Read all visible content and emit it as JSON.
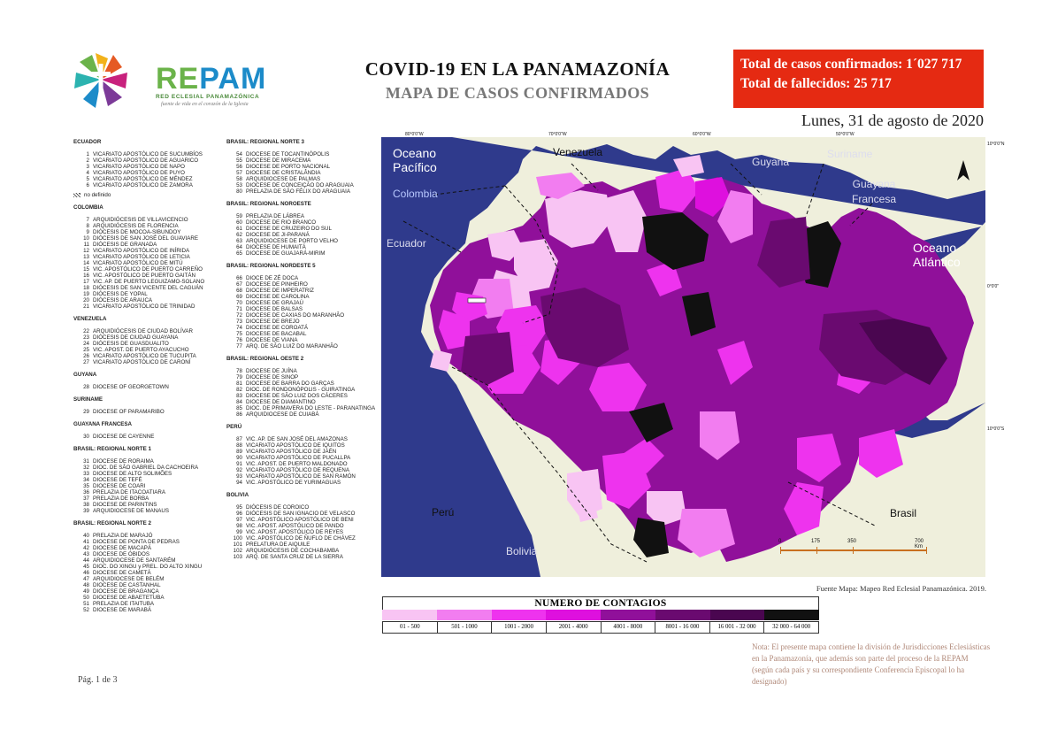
{
  "header": {
    "logo_word": "REPAM",
    "logo_subtitle": "RED ECLESIAL PANAMAZÓNICA",
    "logo_tagline": "fuente de vida en el corazón de la Iglesia",
    "title": "COVID-19 EN LA PANAMAZONÍA",
    "subtitle": "MAPA DE CASOS CONFIRMADOS",
    "total_cases": "Total de casos confirmados: 1´027 717",
    "total_deaths": "Total de fallecidos: 25 717",
    "date": "Lunes, 31 de agosto de 2020"
  },
  "colors": {
    "brand_green": "#6bb34a",
    "brand_blue": "#1c8bc9",
    "totals_bg": "#e52a12",
    "ocean": "#2f3a8c",
    "land_outside": "#efefdc",
    "scale": [
      "#f8c4f3",
      "#f27df0",
      "#ee33ee",
      "#de10de",
      "#90109a",
      "#6a0a70",
      "#4a0650",
      "#111111"
    ]
  },
  "legend_left": [
    {
      "header": "ECUADOR",
      "items": [
        {
          "n": "1",
          "name": "VICARIATO APOSTÓLICO DE SUCUMBÍOS"
        },
        {
          "n": "2",
          "name": "VICARIATO APOSTÓLICO DE AGUARICO"
        },
        {
          "n": "3",
          "name": "VICARIATO APOSTÓLICO DE NAPO"
        },
        {
          "n": "4",
          "name": "VICARIATO APOSTÓLICO DE PUYO"
        },
        {
          "n": "5",
          "name": "VICARIATO APOSTÓLICO DE MÉNDEZ"
        },
        {
          "n": "6",
          "name": "VICARIATO APOSTÓLICO DE ZAMORA"
        }
      ],
      "undefined_label": "no definido"
    },
    {
      "header": "COLOMBIA",
      "items": [
        {
          "n": "7",
          "name": "ARQUIDIÓCESIS DE VILLAVICENCIO"
        },
        {
          "n": "8",
          "name": "ARQUIDIÓCESIS DE FLORENCIA"
        },
        {
          "n": "9",
          "name": "DIÓCESIS DE MOCOA-SIBUNDOY"
        },
        {
          "n": "10",
          "name": "DIÓCESIS DE SAN JOSÉ DEL GUAVIARE"
        },
        {
          "n": "11",
          "name": "DIÓCESIS DE GRANADA"
        },
        {
          "n": "12",
          "name": "VICARIATO APOSTÓLICO DE INÍRIDA"
        },
        {
          "n": "13",
          "name": "VICARIATO APOSTÓLICO DE LETICIA"
        },
        {
          "n": "14",
          "name": "VICARIATO APOSTÓLICO DE MITÚ"
        },
        {
          "n": "15",
          "name": "VIC. APOSTÓLICO DE PUERTO CARREÑO"
        },
        {
          "n": "16",
          "name": "VIC. APOSTÓLICO DE PUERTO GAITÁN"
        },
        {
          "n": "17",
          "name": "VIC. AP. DE PUERTO LEGUIZAMO-SOLANO"
        },
        {
          "n": "18",
          "name": "DIÓCESIS DE SAN VICENTE DEL CAGUÁN"
        },
        {
          "n": "19",
          "name": "DIÓCESIS DE YOPAL"
        },
        {
          "n": "20",
          "name": "DIÓCESIS DE ARAUCA"
        },
        {
          "n": "21",
          "name": "VICARIATO APOSTÓLICO DE TRINIDAD"
        }
      ]
    },
    {
      "header": "VENEZUELA",
      "items": [
        {
          "n": "22",
          "name": "ARQUIDIÓCESIS DE CIUDAD BOLÍVAR"
        },
        {
          "n": "23",
          "name": "DIÓCESIS DE CIUDAD GUAYANA"
        },
        {
          "n": "24",
          "name": "DIÓCESIS DE GUASDUALITO"
        },
        {
          "n": "25",
          "name": "VIC. APOST. DE PUERTO AYACUCHO"
        },
        {
          "n": "26",
          "name": "VICARIATO APOSTÓLICO DE TUCUPITA"
        },
        {
          "n": "27",
          "name": "VICARIATO APOSTÓLICO DE CARONÍ"
        }
      ]
    },
    {
      "header": "GUYANA",
      "items": [
        {
          "n": "28",
          "name": "DIOCESE OF GEORGETOWN"
        }
      ]
    },
    {
      "header": "SURINAME",
      "items": [
        {
          "n": "29",
          "name": "DIOCESE OF PARAMARIBO"
        }
      ]
    },
    {
      "header": "GUAYANA FRANCESA",
      "items": [
        {
          "n": "30",
          "name": "DIOCESE DE CAYENNE"
        }
      ]
    },
    {
      "header": "BRASIL: REGIONAL NORTE 1",
      "items": [
        {
          "n": "31",
          "name": "DIOCESE DE RORAIMA"
        },
        {
          "n": "32",
          "name": "DIOC. DE SÃO GABRIEL DA CACHOEIRA"
        },
        {
          "n": "33",
          "name": "DIOCESE DE ALTO SOLIMÕES"
        },
        {
          "n": "34",
          "name": "DIOCESE DE TEFÉ"
        },
        {
          "n": "35",
          "name": "DIOCESE DE COARI"
        },
        {
          "n": "36",
          "name": "PRELAZIA DE ITACOATIARA"
        },
        {
          "n": "37",
          "name": "PRELAZIA DE BORBA"
        },
        {
          "n": "38",
          "name": "DIOCESE DE PARINTINS"
        },
        {
          "n": "39",
          "name": "ARQUIDIOCESE DE MANAUS"
        }
      ]
    },
    {
      "header": "BRASIL: REGIONAL NORTE 2",
      "items": [
        {
          "n": "40",
          "name": "PRELAZIA DE MARAJÓ"
        },
        {
          "n": "41",
          "name": "DIOCESE DE PONTA DE PEDRAS"
        },
        {
          "n": "42",
          "name": "DIOCESE DE MACAPÁ"
        },
        {
          "n": "43",
          "name": "DIOCESE DE ÓBIDOS"
        },
        {
          "n": "44",
          "name": "ARQUIDIOCESE DE SANTARÉM"
        },
        {
          "n": "45",
          "name": "DIOC. DO XINGU y PREL. DO ALTO XINGU"
        },
        {
          "n": "46",
          "name": "DIOCESE DE CAMETÁ"
        },
        {
          "n": "47",
          "name": "ARQUIDIOCESE DE BELÉM"
        },
        {
          "n": "48",
          "name": "DIOCESE DE CASTANHAL"
        },
        {
          "n": "49",
          "name": "DIOCESE DE BRAGANÇA"
        },
        {
          "n": "50",
          "name": "DIOCESE DE ABAETETUBA"
        },
        {
          "n": "51",
          "name": "PRELAZIA DE ITAITUBA"
        },
        {
          "n": "52",
          "name": "DIOCESE DE MARABÁ"
        }
      ]
    }
  ],
  "legend_right": [
    {
      "header": "BRASIL: REGIONAL NORTE 3",
      "items": [
        {
          "n": "54",
          "name": "DIOCESE DE TOCANTINÓPOLIS"
        },
        {
          "n": "55",
          "name": "DIOCESE DE MIRACEMA"
        },
        {
          "n": "56",
          "name": "DIOCESE DE PORTO NACIONAL"
        },
        {
          "n": "57",
          "name": "DIOCESE DE CRISTALÂNDIA"
        },
        {
          "n": "58",
          "name": "ARQUIDIOCESE DE PALMAS"
        },
        {
          "n": "53",
          "name": "DIOCESE DE CONCEIÇÃO DO ARAGUAIA"
        },
        {
          "n": "80",
          "name": "PRELAZIA DE SÃO FÉLIX DO ARAGUAIA"
        }
      ]
    },
    {
      "header": "BRASIL: REGIONAL NOROESTE",
      "items": [
        {
          "n": "59",
          "name": "PRELAZIA DE LÁBREA"
        },
        {
          "n": "60",
          "name": "DIOCESE DE RIO BRANCO"
        },
        {
          "n": "61",
          "name": "DIOCESE DE CRUZEIRO DO SUL"
        },
        {
          "n": "62",
          "name": "DIOCESE DE JI-PARANÁ"
        },
        {
          "n": "63",
          "name": "ARQUIDIOCESE DE PORTO VELHO"
        },
        {
          "n": "64",
          "name": "DIOCESE DE HUMAITÁ"
        },
        {
          "n": "65",
          "name": "DIOCESE DE GUAJARÁ-MIRIM"
        }
      ]
    },
    {
      "header": "BRASIL: REGIONAL NORDESTE 5",
      "items": [
        {
          "n": "66",
          "name": "DIOCE DE ZÉ DOCA"
        },
        {
          "n": "67",
          "name": "DIOCESE DE PINHEIRO"
        },
        {
          "n": "68",
          "name": "DIOCESE DE IMPERATRIZ"
        },
        {
          "n": "69",
          "name": "DIOCESE DE CAROLINA"
        },
        {
          "n": "70",
          "name": "DIOCESE DE GRAJAÚ"
        },
        {
          "n": "71",
          "name": "DIOCESE DE BALSAS"
        },
        {
          "n": "72",
          "name": "DIOCESE DE CAXIAS DO MARANHÃO"
        },
        {
          "n": "73",
          "name": "DIOCESE DE BREJO"
        },
        {
          "n": "74",
          "name": "DIOCESE DE COROATÁ"
        },
        {
          "n": "75",
          "name": "DIOCESE DE BACABAL"
        },
        {
          "n": "76",
          "name": "DIOCESE DE VIANA"
        },
        {
          "n": "77",
          "name": "ARQ. DE SÃO LUIZ DO MARANHÃO"
        }
      ]
    },
    {
      "header": "BRASIL: REGIONAL OESTE 2",
      "items": [
        {
          "n": "78",
          "name": "DIOCESE DE JUÍNA"
        },
        {
          "n": "79",
          "name": "DIOCESE DE SINOP"
        },
        {
          "n": "81",
          "name": "DIOCESE DE BARRA DO GARÇAS"
        },
        {
          "n": "82",
          "name": "DIOC. DE RONDONÓPOLIS - GUIRATINGA"
        },
        {
          "n": "83",
          "name": "DIOCESE DE SÃO LUIZ DOS CÁCERES"
        },
        {
          "n": "84",
          "name": "DIOCESE DE DIAMANTINO"
        },
        {
          "n": "85",
          "name": "DIOC. DE PRIMAVERA DO LESTE - PARANATINGA"
        },
        {
          "n": "86",
          "name": "ARQUIDIOCESE DE CUIABÁ"
        }
      ]
    },
    {
      "header": "PERÚ",
      "items": [
        {
          "n": "87",
          "name": "VIC. AP. DE SAN JOSÉ DEL AMAZONAS"
        },
        {
          "n": "88",
          "name": "VICARIATO APOSTÓLICO DE IQUITOS"
        },
        {
          "n": "89",
          "name": "VICARIATO APOSTÓLICO DE JAÉN"
        },
        {
          "n": "90",
          "name": "VICARIATO APOSTÓLICO DE PUCALLPA"
        },
        {
          "n": "91",
          "name": "VIC. APOST. DE PUERTO MALDONADO"
        },
        {
          "n": "92",
          "name": "VICARIATO APOSTÓLICO DE REQUENA"
        },
        {
          "n": "93",
          "name": "VICARIATO APOSTÓLICO DE SAN RAMÓN"
        },
        {
          "n": "94",
          "name": "VIC. APOSTÓLICO DE YURIMAGUAS"
        }
      ]
    },
    {
      "header": "BOLIVIA",
      "items": [
        {
          "n": "95",
          "name": "DIÓCESIS DE COROICO"
        },
        {
          "n": "96",
          "name": "DIÓCESIS DE SAN IGNACIO DE VELASCO"
        },
        {
          "n": "97",
          "name": "VIC. APOSTÓLICO APOSTÓLICO DE BENI"
        },
        {
          "n": "98",
          "name": "VIC. APOST. APOSTÓLICO DE PANDO"
        },
        {
          "n": "99",
          "name": "VIC. APOST. APOSTÓLICO DE REYES"
        },
        {
          "n": "100",
          "name": "VIC. APOSTÓLICO DE ÑUFLO DE CHÁVEZ"
        },
        {
          "n": "101",
          "name": "PRELATURA DE AIQUILE"
        },
        {
          "n": "102",
          "name": "ARQUIDIÓCESIS DE COCHABAMBA"
        },
        {
          "n": "103",
          "name": "ARQ. DE SANTA CRUZ DE LA SIERRA"
        }
      ]
    }
  ],
  "map": {
    "labels": {
      "ocean_pacific": [
        "Oceano",
        "Pacífico"
      ],
      "ocean_atlantic": [
        "Oceano",
        "Atlántico"
      ],
      "colombia": "Colombia",
      "venezuela": "Venezuela",
      "guyana": "Guyana",
      "suriname": "Suriname",
      "guayana_francesa": [
        "Guayana",
        "Francesa"
      ],
      "ecuador": "Ecuador",
      "peru": "Perú",
      "bolivia": "Bolivia",
      "brasil": "Brasil"
    },
    "lon_ticks": [
      "80°0'0\"W",
      "70°0'0\"W",
      "60°0'0\"W",
      "50°0'0\"W"
    ],
    "lat_ticks": [
      "10°0'0\"N",
      "0°0'0\"",
      "10°0'0\"S"
    ],
    "scale_bar": [
      "0",
      "175",
      "350",
      "700 Km"
    ],
    "source": "Fuente Mapa: Mapeo Red Eclesial Panamazónica. 2019."
  },
  "legend_scale": {
    "title": "NUMERO DE CONTAGIOS",
    "classes": [
      "01 - 500",
      "501 - 1000",
      "1001 - 2000",
      "2001 - 4000",
      "4001 - 8000",
      "8001 - 16 000",
      "16 001 - 32 000",
      "32 000 - 64 000"
    ]
  },
  "note": "Nota: El presente mapa contiene la división de Jurisdicciones Eclesiásticas en la Panamazonía, que además son parte del proceso de la REPAM (según cada país y su correspondiente Conferencia Episcopal lo ha designado)",
  "page_label": "Pág. 1 de 3"
}
